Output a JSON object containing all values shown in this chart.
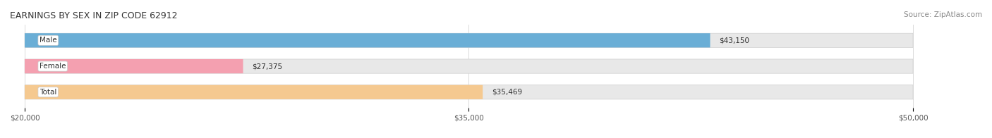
{
  "title": "EARNINGS BY SEX IN ZIP CODE 62912",
  "source": "Source: ZipAtlas.com",
  "categories": [
    "Male",
    "Female",
    "Total"
  ],
  "values": [
    43150,
    27375,
    35469
  ],
  "bar_colors": [
    "#6aaed6",
    "#f4a0b0",
    "#f5c990"
  ],
  "bar_bg_color": "#e8e8e8",
  "label_bg_color": "#ffffff",
  "xlim_min": 20000,
  "xlim_max": 50000,
  "xticks": [
    20000,
    35000,
    50000
  ],
  "xtick_labels": [
    "$20,000",
    "$35,000",
    "$50,000"
  ],
  "title_fontsize": 9,
  "source_fontsize": 7.5,
  "bar_label_fontsize": 7.5,
  "category_fontsize": 7.5,
  "tick_fontsize": 7.5,
  "background_color": "#ffffff",
  "bar_height": 0.55
}
